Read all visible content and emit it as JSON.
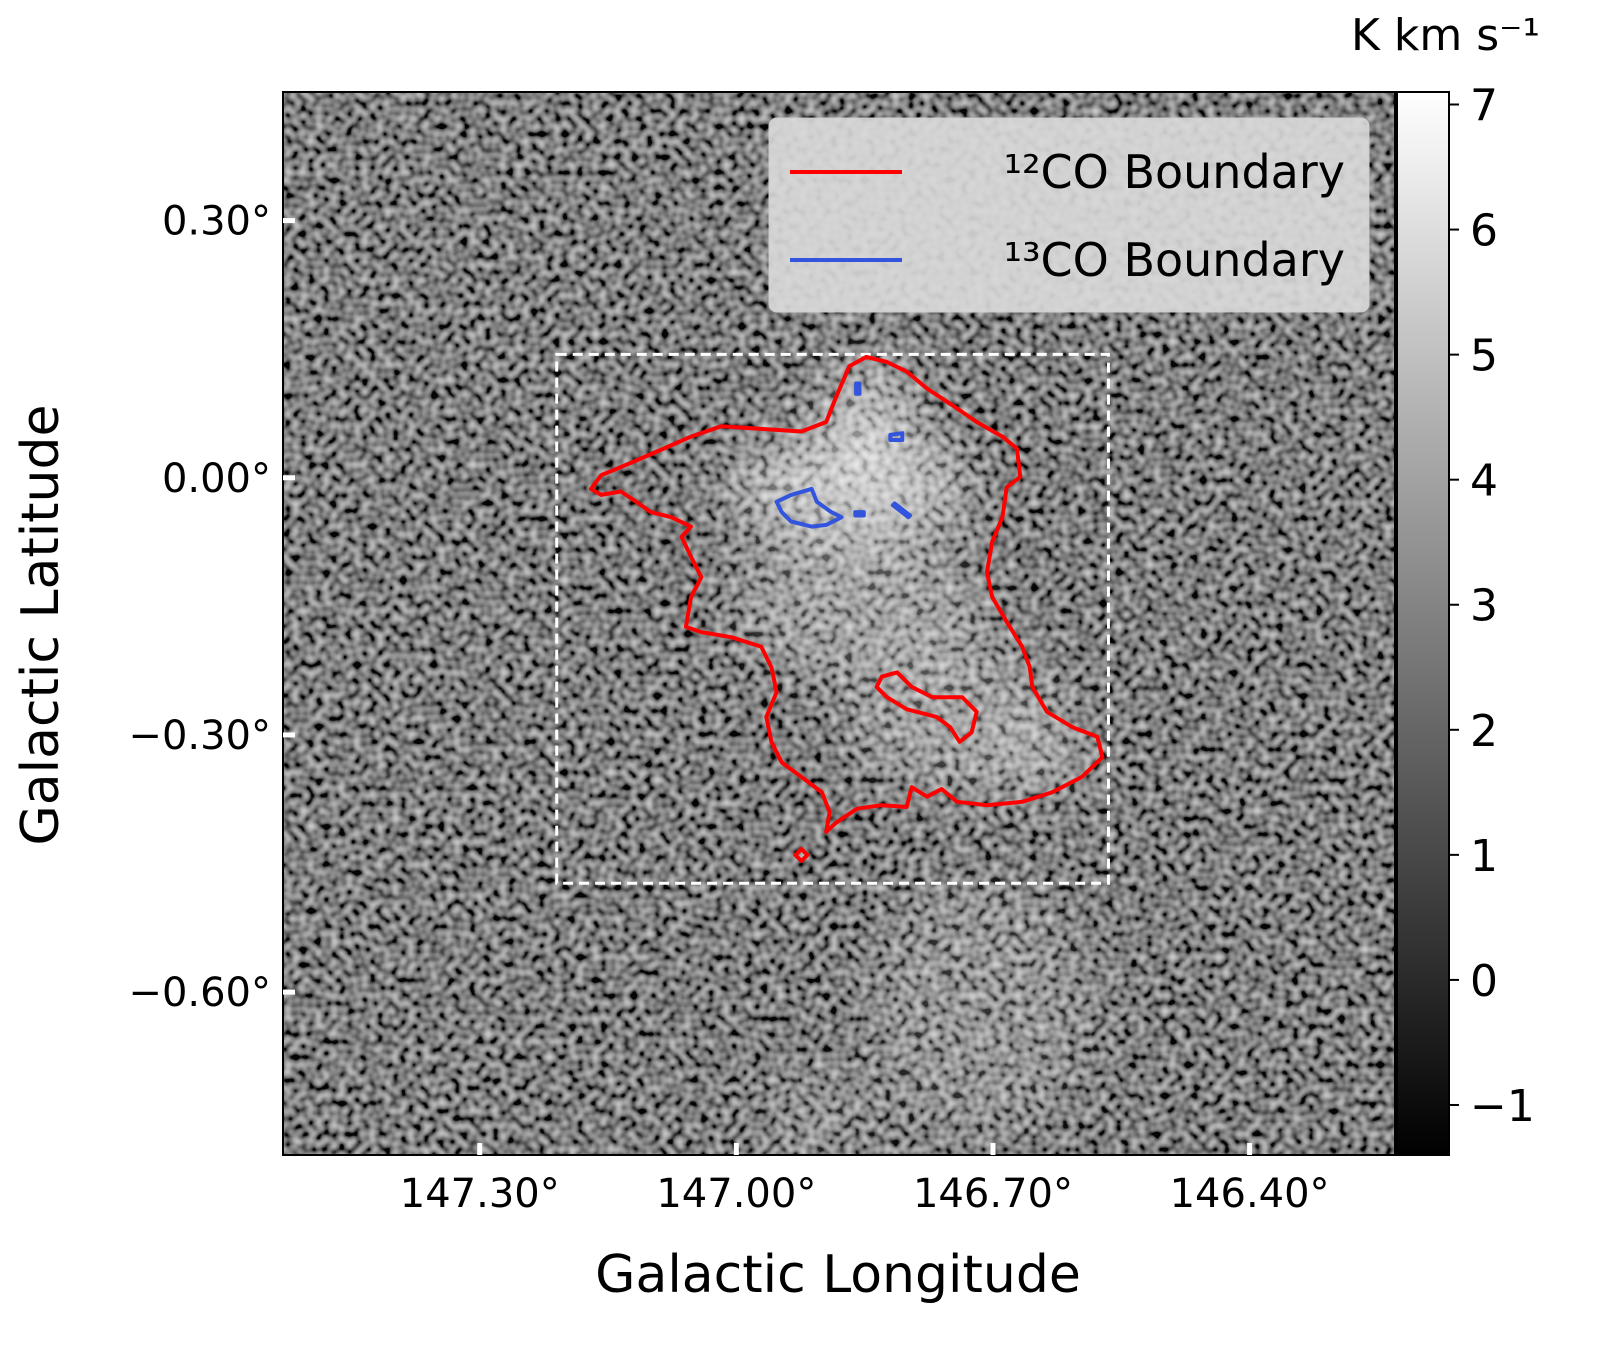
{
  "chart_data": {
    "type": "image",
    "xlabel": "Galactic Longitude",
    "ylabel": "Galactic Latitude",
    "xlim": [
      147.53,
      146.23
    ],
    "ylim": [
      -0.79,
      0.45
    ],
    "xticks": [
      {
        "value": 147.3,
        "label": "147.30°"
      },
      {
        "value": 147.0,
        "label": "147.00°"
      },
      {
        "value": 146.7,
        "label": "146.70°"
      },
      {
        "value": 146.4,
        "label": "146.40°"
      }
    ],
    "yticks": [
      {
        "value": 0.3,
        "label": "0.30°"
      },
      {
        "value": 0.0,
        "label": "0.00°"
      },
      {
        "value": -0.3,
        "label": "−0.30°"
      },
      {
        "value": -0.6,
        "label": "−0.60°"
      }
    ],
    "colorbar": {
      "label": "K km s⁻¹",
      "clim": [
        -1.4,
        7.1
      ],
      "ticks": [
        {
          "value": -1,
          "label": "−1"
        },
        0,
        1,
        2,
        3,
        4,
        5,
        6,
        7
      ]
    },
    "legend": "upper right",
    "region": {
      "lon": [
        147.21,
        146.565
      ],
      "lat": [
        -0.473,
        0.144
      ]
    },
    "series": [
      {
        "name": "¹²CO Boundary",
        "color": "#ff0000",
        "contours": [
          {
            "lon": [
              147.17,
              147.158,
              147.129,
              147.094,
              147.053,
              147.018,
              146.971,
              146.924,
              146.895,
              146.883,
              146.868,
              146.848,
              146.824,
              146.801,
              146.777,
              146.748,
              146.719,
              146.689,
              146.672,
              146.668,
              146.684,
              146.689,
              146.701,
              146.707,
              146.701,
              146.684,
              146.666,
              146.657,
              146.654,
              146.637,
              146.607,
              146.578,
              146.572,
              146.596,
              146.631,
              146.666,
              146.707,
              146.742,
              146.76,
              146.777,
              146.795,
              146.801,
              146.83,
              146.859,
              146.883,
              146.895,
              146.891,
              146.9,
              146.924,
              146.947,
              146.959,
              146.965,
              146.953,
              146.959,
              146.971,
              147.006,
              147.041,
              147.059,
              147.053,
              147.041,
              147.053,
              147.064,
              147.053,
              147.076,
              147.1,
              147.117,
              147.135,
              147.158
            ],
            "lat": [
              -0.013,
              0.003,
              0.015,
              0.03,
              0.048,
              0.06,
              0.057,
              0.054,
              0.065,
              0.095,
              0.13,
              0.141,
              0.135,
              0.124,
              0.104,
              0.085,
              0.065,
              0.048,
              0.034,
              0.001,
              -0.011,
              -0.046,
              -0.075,
              -0.11,
              -0.139,
              -0.168,
              -0.197,
              -0.221,
              -0.244,
              -0.273,
              -0.291,
              -0.302,
              -0.326,
              -0.349,
              -0.367,
              -0.378,
              -0.382,
              -0.378,
              -0.363,
              -0.372,
              -0.361,
              -0.384,
              -0.382,
              -0.386,
              -0.402,
              -0.413,
              -0.39,
              -0.367,
              -0.349,
              -0.332,
              -0.308,
              -0.279,
              -0.25,
              -0.221,
              -0.197,
              -0.186,
              -0.18,
              -0.174,
              -0.139,
              -0.116,
              -0.092,
              -0.069,
              -0.057,
              -0.046,
              -0.04,
              -0.028,
              -0.016,
              -0.02
            ]
          },
          {
            "lon": [
              146.83,
              146.812,
              146.795,
              146.771,
              146.736,
              146.719,
              146.725,
              146.739,
              146.75,
              146.766,
              146.801,
              146.824,
              146.836
            ],
            "lat": [
              -0.232,
              -0.227,
              -0.244,
              -0.256,
              -0.256,
              -0.273,
              -0.297,
              -0.308,
              -0.291,
              -0.279,
              -0.27,
              -0.256,
              -0.244
            ]
          },
          {
            "lon": [
              146.931,
              146.924,
              146.917,
              146.924
            ],
            "lat": [
              -0.44,
              -0.433,
              -0.44,
              -0.447
            ]
          }
        ]
      },
      {
        "name": "¹³CO Boundary",
        "color": "#3355dd",
        "contours": [
          {
            "lon": [
              146.953,
              146.936,
              146.912,
              146.906,
              146.889,
              146.877,
              146.895,
              146.912,
              146.936,
              146.947
            ],
            "lat": [
              -0.028,
              -0.02,
              -0.013,
              -0.028,
              -0.04,
              -0.046,
              -0.055,
              -0.057,
              -0.051,
              -0.04
            ]
          },
          {
            "lon": [
              146.86,
              146.856,
              146.856,
              146.86
            ],
            "lat": [
              0.11,
              0.11,
              0.098,
              0.098
            ]
          },
          {
            "lon": [
              146.82,
              146.806,
              146.806,
              146.82
            ],
            "lat": [
              0.05,
              0.052,
              0.044,
              0.044
            ]
          },
          {
            "lon": [
              146.861,
              146.851,
              146.851,
              146.861
            ],
            "lat": [
              -0.04,
              -0.04,
              -0.044,
              -0.044
            ]
          },
          {
            "lon": [
              146.817,
              146.799,
              146.797,
              146.815
            ],
            "lat": [
              -0.032,
              -0.046,
              -0.044,
              -0.03
            ]
          }
        ]
      }
    ]
  }
}
